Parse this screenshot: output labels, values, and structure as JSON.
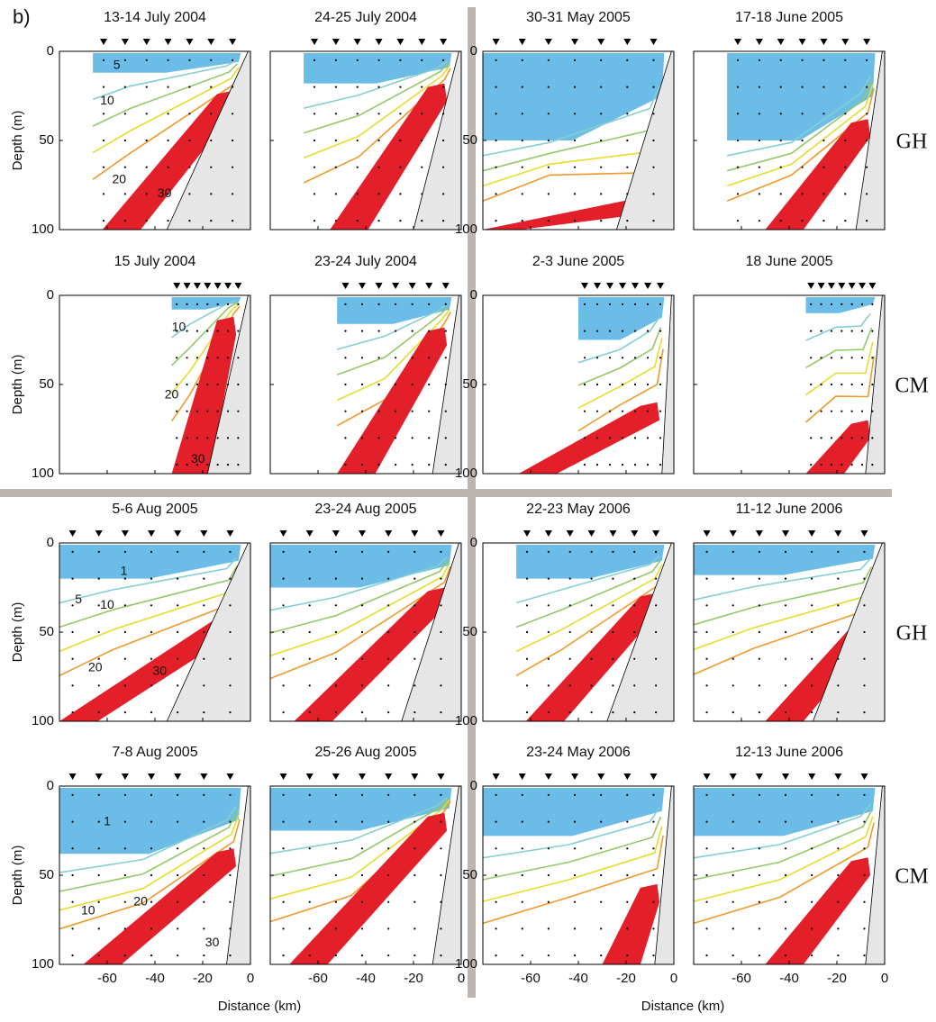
{
  "panel_label": "b)",
  "y_axis_label": "Depth (m)",
  "x_axis_label": "Distance (km)",
  "xlim": [
    -80,
    0
  ],
  "ylim": [
    0,
    100
  ],
  "xticks": [
    -60,
    -40,
    -20,
    0
  ],
  "yticks": [
    0,
    50,
    100
  ],
  "row_labels": [
    "GH",
    "CM",
    "GH",
    "CM"
  ],
  "panels": [
    {
      "title": "13-14 July 2004",
      "contour_labels": [
        "5",
        "10",
        "20",
        "30"
      ]
    },
    {
      "title": "24-25 July 2004"
    },
    {
      "title": "30-31 May 2005"
    },
    {
      "title": "17-18 June 2005"
    },
    {
      "title": "15 July 2004",
      "contour_labels": [
        "10",
        "20",
        "30"
      ]
    },
    {
      "title": "23-24 July 2004"
    },
    {
      "title": "2-3 June 2005"
    },
    {
      "title": "18 June 2005"
    },
    {
      "title": "5-6 Aug 2005",
      "contour_labels": [
        "1",
        "5",
        "10",
        "20",
        "30"
      ]
    },
    {
      "title": "23-24 Aug 2005"
    },
    {
      "title": "22-23 May 2006"
    },
    {
      "title": "11-12 June 2006"
    },
    {
      "title": "7-8 Aug 2005",
      "contour_labels": [
        "1",
        "10",
        "20",
        "30"
      ]
    },
    {
      "title": "25-26 Aug 2005"
    },
    {
      "title": "23-24 May 2006"
    },
    {
      "title": "12-13 June 2006"
    }
  ]
}
